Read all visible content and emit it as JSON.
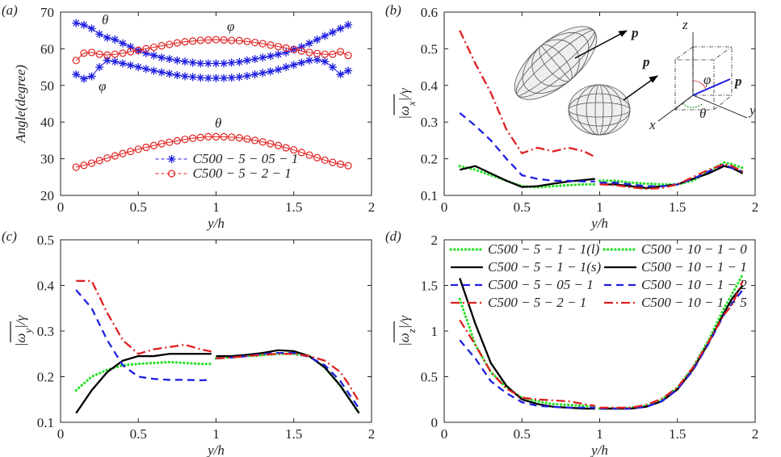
{
  "chart_data": [
    {
      "type": "line",
      "label": "(a)",
      "xlabel": "y/h",
      "ylabel": [
        "Angle(degree)"
      ],
      "xlim": [
        0,
        2
      ],
      "ylim": [
        20,
        70
      ],
      "xticks": [
        0,
        0.5,
        1,
        1.5,
        2
      ],
      "yticks": [
        20,
        30,
        40,
        50,
        60,
        70
      ],
      "legend": "lower center",
      "annotations": [
        "θ",
        "φ",
        "φ",
        "θ"
      ],
      "x": [
        0.1,
        0.15,
        0.2,
        0.25,
        0.3,
        0.35,
        0.4,
        0.45,
        0.5,
        0.55,
        0.6,
        0.65,
        0.7,
        0.75,
        0.8,
        0.85,
        0.9,
        0.95,
        1,
        1.05,
        1.1,
        1.15,
        1.2,
        1.25,
        1.3,
        1.35,
        1.4,
        1.45,
        1.5,
        1.55,
        1.6,
        1.65,
        1.7,
        1.75,
        1.8,
        1.85
      ],
      "series": [
        {
          "name": "C500 − 5 − 05 − 1",
          "color": "#1f1fe0",
          "marker": "star",
          "dash": "dashed",
          "values": [
            67,
            66.5,
            65.5,
            64,
            63,
            62.5,
            61.5,
            60.5,
            59.5,
            58.8,
            58.2,
            57.6,
            57.2,
            56.8,
            56.5,
            56.2,
            56,
            56,
            56,
            56,
            56.2,
            56.4,
            56.8,
            57.2,
            57.6,
            58,
            58.5,
            59,
            59.8,
            60.5,
            61.5,
            62.5,
            63.5,
            64.5,
            65.5,
            66.5
          ]
        },
        {
          "color": "#1f1fe0",
          "marker": "star",
          "dash": "dashed",
          "values": [
            53,
            51.8,
            52.5,
            55,
            56.8,
            56.5,
            56,
            55.5,
            55,
            54.5,
            54,
            53.6,
            53.2,
            52.8,
            52.5,
            52.3,
            52.1,
            52,
            52,
            52,
            52.1,
            52.3,
            52.6,
            53,
            53.4,
            53.8,
            54.3,
            55,
            55.6,
            56.2,
            56.8,
            57,
            56.5,
            55,
            53,
            54
          ]
        },
        {
          "name": "C500 − 5 − 2 − 1",
          "color": "#e01f1f",
          "marker": "circle",
          "dash": "solid",
          "values": [
            27.7,
            28.2,
            28.8,
            29.5,
            30.2,
            30.8,
            31.4,
            32,
            32.6,
            33.1,
            33.6,
            34.1,
            34.5,
            34.9,
            35.3,
            35.6,
            35.8,
            36,
            36,
            36,
            35.9,
            35.7,
            35.4,
            35,
            34.6,
            34.1,
            33.6,
            33,
            32.4,
            31.7,
            31,
            30.3,
            29.6,
            29,
            28.5,
            28.1
          ]
        },
        {
          "color": "#e01f1f",
          "marker": "circle",
          "dash": "solid",
          "values": [
            56.8,
            58.8,
            59,
            58.5,
            58.3,
            58.5,
            58.8,
            59.2,
            59.6,
            60,
            60.4,
            60.8,
            61.2,
            61.6,
            61.9,
            62.1,
            62.3,
            62.4,
            62.5,
            62.4,
            62.3,
            62.2,
            62,
            61.7,
            61.4,
            61,
            60.6,
            60.2,
            59.8,
            59.4,
            59,
            58.7,
            58.5,
            58.5,
            59.2,
            58.2
          ]
        }
      ]
    },
    {
      "type": "line",
      "label": "(b)",
      "xlabel": "y/h",
      "ylabel": [
        "|ω",
        "x",
        "|/γ"
      ],
      "xlim": [
        0,
        2
      ],
      "ylim": [
        0.1,
        0.6
      ],
      "xticks": [
        0,
        0.5,
        1,
        1.5,
        2
      ],
      "yticks": [
        0.1,
        0.2,
        0.3,
        0.4,
        0.5,
        0.6
      ],
      "inset_labels": [
        "p",
        "p",
        "z",
        "y",
        "x",
        "p",
        "φ",
        "θ"
      ],
      "series": [
        {
          "color": "#22e022",
          "dash": "dotted",
          "x": [
            0.1,
            0.2,
            0.3,
            0.4,
            0.5,
            0.6,
            0.7,
            0.8,
            0.9,
            0.97
          ],
          "values": [
            0.18,
            0.17,
            0.155,
            0.14,
            0.125,
            0.122,
            0.125,
            0.128,
            0.13,
            0.13
          ]
        },
        {
          "color": "#000000",
          "dash": "solid",
          "x": [
            0.1,
            0.2,
            0.3,
            0.4,
            0.5,
            0.6,
            0.7,
            0.8,
            0.9,
            0.97
          ],
          "values": [
            0.17,
            0.18,
            0.16,
            0.14,
            0.123,
            0.125,
            0.132,
            0.138,
            0.142,
            0.145
          ]
        },
        {
          "color": "#1f1fe0",
          "dash": "dashed",
          "x": [
            0.1,
            0.2,
            0.3,
            0.4,
            0.5,
            0.6,
            0.7,
            0.8,
            0.9,
            0.97
          ],
          "values": [
            0.325,
            0.29,
            0.25,
            0.2,
            0.155,
            0.145,
            0.14,
            0.14,
            0.138,
            0.138
          ]
        },
        {
          "color": "#e01f1f",
          "dash": "dashdot",
          "x": [
            0.1,
            0.2,
            0.3,
            0.4,
            0.5,
            0.6,
            0.7,
            0.8,
            0.9,
            0.97
          ],
          "values": [
            0.55,
            0.46,
            0.38,
            0.28,
            0.215,
            0.23,
            0.22,
            0.23,
            0.22,
            0.205
          ]
        },
        {
          "color": "#22e022",
          "dash": "dotted",
          "x": [
            1,
            1.1,
            1.2,
            1.3,
            1.4,
            1.5,
            1.6,
            1.7,
            1.8,
            1.85,
            1.92
          ],
          "values": [
            0.14,
            0.14,
            0.135,
            0.132,
            0.13,
            0.13,
            0.14,
            0.165,
            0.19,
            0.185,
            0.175
          ]
        },
        {
          "color": "#000000",
          "dash": "solid",
          "x": [
            1,
            1.1,
            1.2,
            1.3,
            1.4,
            1.5,
            1.6,
            1.7,
            1.8,
            1.85,
            1.92
          ],
          "values": [
            0.13,
            0.13,
            0.125,
            0.12,
            0.125,
            0.13,
            0.145,
            0.16,
            0.18,
            0.175,
            0.16
          ]
        },
        {
          "color": "#1f1fe0",
          "dash": "dashed",
          "x": [
            1,
            1.1,
            1.2,
            1.3,
            1.4,
            1.5,
            1.6,
            1.7,
            1.8,
            1.85,
            1.92
          ],
          "values": [
            0.135,
            0.135,
            0.13,
            0.125,
            0.125,
            0.13,
            0.145,
            0.165,
            0.185,
            0.175,
            0.165
          ]
        },
        {
          "color": "#e01f1f",
          "dash": "dashdot",
          "x": [
            1,
            1.1,
            1.2,
            1.3,
            1.4,
            1.5,
            1.6,
            1.7,
            1.8,
            1.85,
            1.92
          ],
          "values": [
            0.13,
            0.128,
            0.122,
            0.118,
            0.12,
            0.13,
            0.15,
            0.17,
            0.185,
            0.18,
            0.165
          ]
        }
      ]
    },
    {
      "type": "line",
      "label": "(c)",
      "xlabel": "y/h",
      "ylabel": [
        "|ω",
        "y",
        "|/γ"
      ],
      "xlim": [
        0,
        2
      ],
      "ylim": [
        0.1,
        0.5
      ],
      "xticks": [
        0,
        0.5,
        1,
        1.5,
        2
      ],
      "yticks": [
        0.1,
        0.2,
        0.3,
        0.4,
        0.5
      ],
      "series": [
        {
          "color": "#22e022",
          "dash": "dotted",
          "x": [
            0.1,
            0.2,
            0.3,
            0.4,
            0.5,
            0.6,
            0.7,
            0.8,
            0.9,
            0.97
          ],
          "values": [
            0.17,
            0.2,
            0.215,
            0.225,
            0.228,
            0.23,
            0.232,
            0.23,
            0.228,
            0.228
          ]
        },
        {
          "color": "#000000",
          "dash": "solid",
          "x": [
            0.1,
            0.2,
            0.3,
            0.4,
            0.5,
            0.6,
            0.7,
            0.8,
            0.9,
            0.97
          ],
          "values": [
            0.12,
            0.17,
            0.21,
            0.235,
            0.245,
            0.245,
            0.25,
            0.25,
            0.25,
            0.25
          ]
        },
        {
          "color": "#1f1fe0",
          "dash": "dashed",
          "x": [
            0.1,
            0.2,
            0.3,
            0.4,
            0.5,
            0.6,
            0.7,
            0.8,
            0.9,
            0.97
          ],
          "values": [
            0.39,
            0.35,
            0.28,
            0.225,
            0.2,
            0.195,
            0.193,
            0.193,
            0.192,
            0.193
          ]
        },
        {
          "color": "#e01f1f",
          "dash": "dashdot",
          "x": [
            0.1,
            0.2,
            0.3,
            0.4,
            0.5,
            0.6,
            0.7,
            0.8,
            0.9,
            0.97
          ],
          "values": [
            0.41,
            0.41,
            0.34,
            0.28,
            0.25,
            0.26,
            0.265,
            0.27,
            0.26,
            0.255
          ]
        },
        {
          "color": "#22e022",
          "dash": "dotted",
          "x": [
            1,
            1.1,
            1.2,
            1.3,
            1.4,
            1.5,
            1.6,
            1.7,
            1.8,
            1.85,
            1.92
          ],
          "values": [
            0.24,
            0.243,
            0.245,
            0.247,
            0.25,
            0.25,
            0.245,
            0.22,
            0.18,
            0.155,
            0.12
          ]
        },
        {
          "color": "#000000",
          "dash": "solid",
          "x": [
            1,
            1.1,
            1.2,
            1.3,
            1.4,
            1.5,
            1.6,
            1.7,
            1.8,
            1.85,
            1.92
          ],
          "values": [
            0.245,
            0.245,
            0.248,
            0.252,
            0.258,
            0.256,
            0.245,
            0.22,
            0.18,
            0.155,
            0.12
          ]
        },
        {
          "color": "#1f1fe0",
          "dash": "dashed",
          "x": [
            1,
            1.1,
            1.2,
            1.3,
            1.4,
            1.5,
            1.6,
            1.7,
            1.8,
            1.85,
            1.92
          ],
          "values": [
            0.24,
            0.242,
            0.245,
            0.25,
            0.252,
            0.252,
            0.243,
            0.225,
            0.19,
            0.165,
            0.13
          ]
        },
        {
          "color": "#e01f1f",
          "dash": "dashdot",
          "x": [
            1,
            1.1,
            1.2,
            1.3,
            1.4,
            1.5,
            1.6,
            1.7,
            1.8,
            1.85,
            1.92
          ],
          "values": [
            0.24,
            0.242,
            0.245,
            0.248,
            0.25,
            0.25,
            0.245,
            0.235,
            0.21,
            0.185,
            0.145
          ]
        }
      ]
    },
    {
      "type": "line",
      "label": "(d)",
      "xlabel": "y/h",
      "ylabel": [
        "|ω",
        "z",
        "|/γ"
      ],
      "xlim": [
        0,
        2
      ],
      "ylim": [
        0,
        2
      ],
      "xticks": [
        0,
        0.5,
        1,
        1.5,
        2
      ],
      "yticks": [
        0,
        0.5,
        1,
        1.5,
        2
      ],
      "legend": "upper center",
      "legend_ncol": 2,
      "series": [
        {
          "name": "C500 − 5 − 1 − 1(l)",
          "color": "#22e022",
          "dash": "dotted",
          "x": [
            0.1,
            0.2,
            0.3,
            0.4,
            0.5,
            0.6,
            0.7,
            0.8,
            0.9,
            0.97
          ],
          "values": [
            1.35,
            0.85,
            0.55,
            0.38,
            0.27,
            0.23,
            0.2,
            0.19,
            0.18,
            0.17
          ]
        },
        {
          "name": "C500 − 5 − 1 − 1(s)",
          "color": "#000000",
          "dash": "solid",
          "x": [
            0.1,
            0.2,
            0.3,
            0.4,
            0.5,
            0.6,
            0.7,
            0.8,
            0.9,
            0.97
          ],
          "values": [
            1.58,
            1.08,
            0.65,
            0.4,
            0.25,
            0.2,
            0.17,
            0.16,
            0.15,
            0.15
          ]
        },
        {
          "name": "C500 − 5 − 05 − 1",
          "color": "#1f1fe0",
          "dash": "dashed",
          "x": [
            0.1,
            0.2,
            0.3,
            0.4,
            0.5,
            0.6,
            0.7,
            0.8,
            0.9,
            0.97
          ],
          "values": [
            0.9,
            0.7,
            0.45,
            0.32,
            0.22,
            0.18,
            0.17,
            0.16,
            0.16,
            0.16
          ]
        },
        {
          "name": "C500 − 5 − 2 − 1",
          "color": "#e01f1f",
          "dash": "dashdot",
          "x": [
            0.1,
            0.2,
            0.3,
            0.4,
            0.5,
            0.6,
            0.7,
            0.8,
            0.9,
            0.97
          ],
          "values": [
            1.12,
            0.85,
            0.55,
            0.37,
            0.27,
            0.25,
            0.24,
            0.23,
            0.2,
            0.18
          ]
        },
        {
          "name": "C500 − 10 − 1 − 0",
          "color": "#22e022",
          "dash": "dotted",
          "x": [
            1,
            1.1,
            1.2,
            1.3,
            1.4,
            1.5,
            1.6,
            1.7,
            1.8,
            1.85,
            1.92
          ],
          "values": [
            0.15,
            0.15,
            0.16,
            0.18,
            0.25,
            0.38,
            0.6,
            0.9,
            1.25,
            1.4,
            1.62
          ]
        },
        {
          "name": "C500 − 10 − 1 − 1",
          "color": "#000000",
          "dash": "solid",
          "x": [
            1,
            1.1,
            1.2,
            1.3,
            1.4,
            1.5,
            1.6,
            1.7,
            1.8,
            1.85,
            1.92
          ],
          "values": [
            0.15,
            0.15,
            0.15,
            0.17,
            0.23,
            0.36,
            0.58,
            0.87,
            1.2,
            1.35,
            1.5
          ]
        },
        {
          "name": "C500 − 10 − 1 − 2",
          "color": "#1f1fe0",
          "dash": "dashed",
          "x": [
            1,
            1.1,
            1.2,
            1.3,
            1.4,
            1.5,
            1.6,
            1.7,
            1.8,
            1.85,
            1.92
          ],
          "values": [
            0.15,
            0.15,
            0.15,
            0.17,
            0.23,
            0.36,
            0.57,
            0.86,
            1.18,
            1.3,
            1.45
          ]
        },
        {
          "name": "C500 − 10 − 1 − 5",
          "color": "#e01f1f",
          "dash": "dashdot",
          "x": [
            1,
            1.1,
            1.2,
            1.3,
            1.4,
            1.5,
            1.6,
            1.7,
            1.8,
            1.85,
            1.92
          ],
          "values": [
            0.16,
            0.16,
            0.16,
            0.19,
            0.26,
            0.38,
            0.6,
            0.88,
            1.18,
            1.28,
            1.55
          ]
        }
      ]
    }
  ]
}
